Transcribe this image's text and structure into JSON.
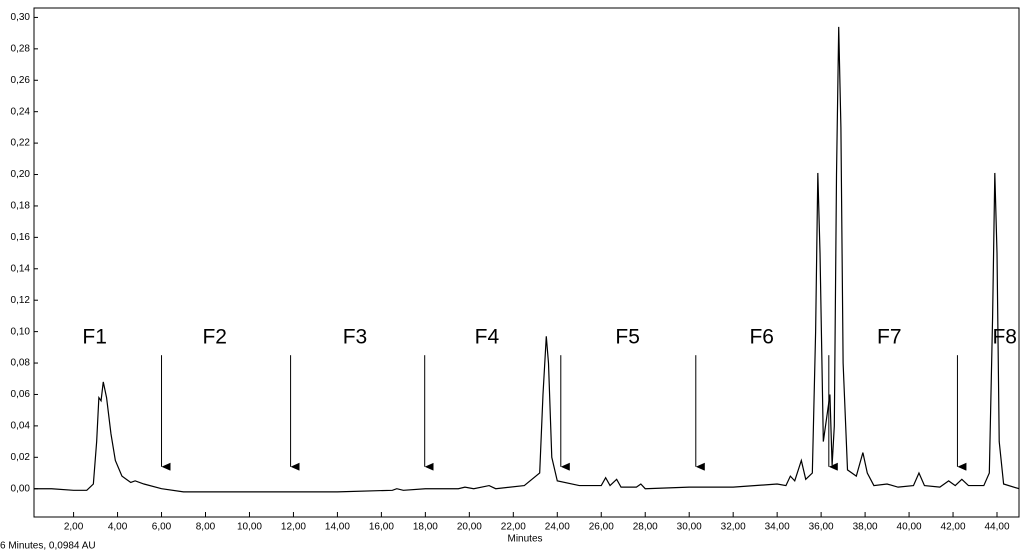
{
  "chart_data": {
    "type": "line",
    "x_label": "Minutes",
    "footer": "6 Minutes, 0,0984 AU",
    "xlim": [
      0.2,
      45.0
    ],
    "ylim": [
      -0.018,
      0.306
    ],
    "xticks": [
      {
        "value": 2,
        "label": "2,00"
      },
      {
        "value": 4,
        "label": "4,00"
      },
      {
        "value": 6,
        "label": "6,00"
      },
      {
        "value": 8,
        "label": "8,00"
      },
      {
        "value": 10,
        "label": "10,00"
      },
      {
        "value": 12,
        "label": "12,00"
      },
      {
        "value": 14,
        "label": "14,00"
      },
      {
        "value": 16,
        "label": "16,00"
      },
      {
        "value": 18,
        "label": "18,00"
      },
      {
        "value": 20,
        "label": "20,00"
      },
      {
        "value": 22,
        "label": "22,00"
      },
      {
        "value": 24,
        "label": "24,00"
      },
      {
        "value": 26,
        "label": "26,00"
      },
      {
        "value": 28,
        "label": "28,00"
      },
      {
        "value": 30,
        "label": "30,00"
      },
      {
        "value": 32,
        "label": "32,00"
      },
      {
        "value": 34,
        "label": "34,00"
      },
      {
        "value": 36,
        "label": "36,00"
      },
      {
        "value": 38,
        "label": "38,00"
      },
      {
        "value": 40,
        "label": "40,00"
      },
      {
        "value": 42,
        "label": "42,00"
      },
      {
        "value": 44,
        "label": "44,00"
      }
    ],
    "yticks": [
      {
        "value": 0,
        "label": "0,00"
      },
      {
        "value": 0.02,
        "label": "0,02"
      },
      {
        "value": 0.04,
        "label": "0,04"
      },
      {
        "value": 0.06,
        "label": "0,06"
      },
      {
        "value": 0.08,
        "label": "0,08"
      },
      {
        "value": 0.1,
        "label": "0,10"
      },
      {
        "value": 0.12,
        "label": "0,12"
      },
      {
        "value": 0.14,
        "label": "0,14"
      },
      {
        "value": 0.16,
        "label": "0,16"
      },
      {
        "value": 0.18,
        "label": "0,18"
      },
      {
        "value": 0.2,
        "label": "0,20"
      },
      {
        "value": 0.22,
        "label": "0,22"
      },
      {
        "value": 0.24,
        "label": "0,24"
      },
      {
        "value": 0.26,
        "label": "0,26"
      },
      {
        "value": 0.28,
        "label": "0,28"
      },
      {
        "value": 0.3,
        "label": "0,30"
      }
    ],
    "x": [
      0.2,
      1.0,
      2.0,
      2.6,
      2.9,
      3.05,
      3.15,
      3.25,
      3.35,
      3.5,
      3.7,
      3.9,
      4.2,
      4.6,
      4.8,
      5.2,
      6.0,
      7.0,
      10,
      14,
      16.5,
      16.7,
      17,
      18,
      19.5,
      19.8,
      20.2,
      20.9,
      21.2,
      22.5,
      23.2,
      23.35,
      23.5,
      23.6,
      23.75,
      24.0,
      25,
      26.0,
      26.2,
      26.4,
      26.7,
      26.9,
      27.6,
      27.8,
      28,
      30,
      32,
      34,
      34.4,
      34.6,
      34.8,
      35.1,
      35.3,
      35.6,
      35.75,
      35.85,
      35.95,
      36.1,
      36.3,
      36.4,
      36.5,
      36.6,
      36.7,
      36.8,
      36.9,
      37.0,
      37.2,
      37.6,
      37.9,
      38.1,
      38.4,
      39,
      39.5,
      40.2,
      40.45,
      40.7,
      41.4,
      41.8,
      42.1,
      42.4,
      42.7,
      43.4,
      43.65,
      43.8,
      43.9,
      44.0,
      44.1,
      44.3,
      45.0
    ],
    "series": [
      {
        "color": "#000000",
        "values": [
          0.0,
          0.0,
          -0.001,
          -0.001,
          0.003,
          0.03,
          0.058,
          0.056,
          0.068,
          0.058,
          0.035,
          0.018,
          0.008,
          0.004,
          0.005,
          0.003,
          0.0,
          -0.002,
          -0.002,
          -0.002,
          -0.001,
          0.0,
          -0.001,
          0.0,
          0.0,
          0.001,
          0.0,
          0.002,
          0.0,
          0.002,
          0.01,
          0.06,
          0.097,
          0.08,
          0.02,
          0.005,
          0.002,
          0.002,
          0.007,
          0.002,
          0.006,
          0.001,
          0.001,
          0.003,
          0.0,
          0.001,
          0.001,
          0.003,
          0.002,
          0.008,
          0.005,
          0.018,
          0.006,
          0.01,
          0.1,
          0.201,
          0.15,
          0.03,
          0.05,
          0.06,
          0.015,
          0.04,
          0.2,
          0.294,
          0.23,
          0.08,
          0.012,
          0.008,
          0.023,
          0.01,
          0.002,
          0.003,
          0.001,
          0.002,
          0.01,
          0.002,
          0.001,
          0.005,
          0.002,
          0.006,
          0.002,
          0.002,
          0.01,
          0.11,
          0.201,
          0.15,
          0.03,
          0.003,
          0.0
        ]
      }
    ],
    "annotations": [
      {
        "text": "F1",
        "x": 2.96,
        "y": 0.096
      },
      {
        "text": "F2",
        "x": 8.42,
        "y": 0.096
      },
      {
        "text": "F3",
        "x": 14.8,
        "y": 0.096
      },
      {
        "text": "F4",
        "x": 20.8,
        "y": 0.096
      },
      {
        "text": "F5",
        "x": 27.2,
        "y": 0.096
      },
      {
        "text": "F6",
        "x": 33.3,
        "y": 0.096
      },
      {
        "text": "F7",
        "x": 39.1,
        "y": 0.096
      },
      {
        "text": "F8",
        "x": 44.35,
        "y": 0.096
      }
    ],
    "arrows": [
      {
        "x": 6.0,
        "y_top": 0.085,
        "y_tip": 0.014
      },
      {
        "x": 11.87,
        "y_top": 0.085,
        "y_tip": 0.014
      },
      {
        "x": 17.97,
        "y_top": 0.085,
        "y_tip": 0.014
      },
      {
        "x": 24.16,
        "y_top": 0.085,
        "y_tip": 0.014
      },
      {
        "x": 30.3,
        "y_top": 0.085,
        "y_tip": 0.014
      },
      {
        "x": 36.35,
        "y_top": 0.085,
        "y_tip": 0.014
      },
      {
        "x": 42.2,
        "y_top": 0.085,
        "y_tip": 0.014
      }
    ]
  }
}
